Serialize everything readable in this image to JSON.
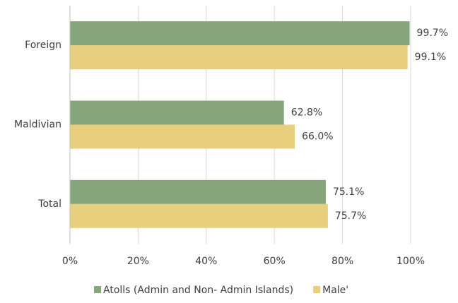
{
  "chart_data": {
    "type": "hbar",
    "categories": [
      "Foreign",
      "Maldivian",
      "Total"
    ],
    "series": [
      {
        "name": "Atolls (Admin and Non- Admin Islands)",
        "color": "#86a57a",
        "values": [
          99.7,
          62.8,
          75.1
        ],
        "value_labels": [
          "99.7%",
          "62.8%",
          "75.1%"
        ]
      },
      {
        "name": "Male'",
        "color": "#e8cf7d",
        "values": [
          99.1,
          66.0,
          75.7
        ],
        "value_labels": [
          "99.1%",
          "66.0%",
          "75.7%"
        ]
      }
    ],
    "xlim": [
      0,
      100
    ],
    "xticks": [
      {
        "value": 0,
        "label": "0%"
      },
      {
        "value": 20,
        "label": "20%"
      },
      {
        "value": 40,
        "label": "40%"
      },
      {
        "value": 60,
        "label": "60%"
      },
      {
        "value": 80,
        "label": "80%"
      },
      {
        "value": 100,
        "label": "100%"
      }
    ],
    "grid": true,
    "legend": "bottom"
  }
}
